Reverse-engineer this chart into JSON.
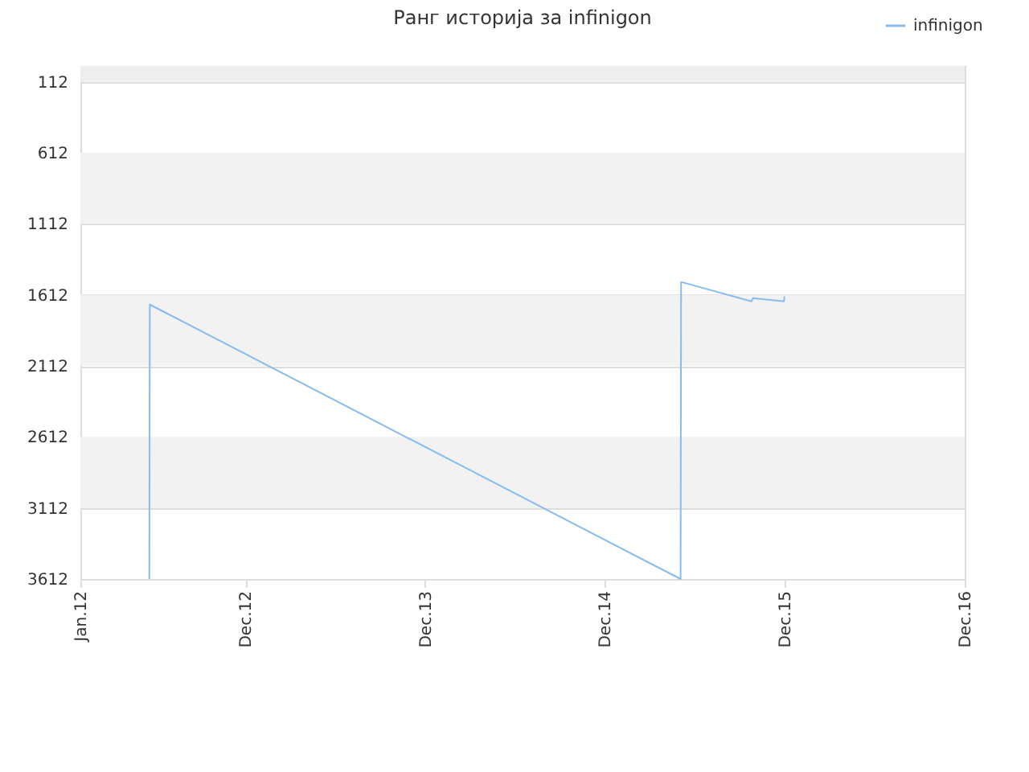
{
  "chart_data": {
    "type": "line",
    "title": "Ранг историја за infinigon",
    "x": [
      "2012-05-20",
      "2012-05-21",
      "2015-05-04",
      "2015-05-05",
      "2015-09-25",
      "2015-09-28",
      "2015-11-30",
      "2015-12-01"
    ],
    "series": [
      {
        "name": "infinigon",
        "color": "#88bbee",
        "values": [
          3612,
          1680,
          3612,
          1521,
          1657,
          1635,
          1657,
          1623
        ]
      }
    ],
    "xlim": [
      "2012-01-01",
      "2016-12-01"
    ],
    "xticks": [
      {
        "value": "2012-01-01",
        "label": "Jan.12"
      },
      {
        "value": "2012-12-01",
        "label": "Dec.12"
      },
      {
        "value": "2013-12-01",
        "label": "Dec.13"
      },
      {
        "value": "2014-12-01",
        "label": "Dec.14"
      },
      {
        "value": "2015-12-01",
        "label": "Dec.15"
      },
      {
        "value": "2016-12-01",
        "label": "Dec.16"
      }
    ],
    "ylim": [
      3612,
      0
    ],
    "yticks": [
      112,
      612,
      1112,
      1612,
      2112,
      2612,
      3112,
      3612
    ],
    "bands": [
      {
        "axis": "y",
        "from": 0,
        "to": 112,
        "color": "#eeeeee"
      },
      {
        "axis": "y",
        "from": 612,
        "to": 1112,
        "color": "#f2f2f2"
      },
      {
        "axis": "y",
        "from": 1612,
        "to": 2112,
        "color": "#f2f2f2"
      },
      {
        "axis": "y",
        "from": 2612,
        "to": 3112,
        "color": "#f2f2f2"
      }
    ],
    "grid": "y",
    "legend": "top right",
    "marker": "none",
    "line_style": "solid"
  }
}
